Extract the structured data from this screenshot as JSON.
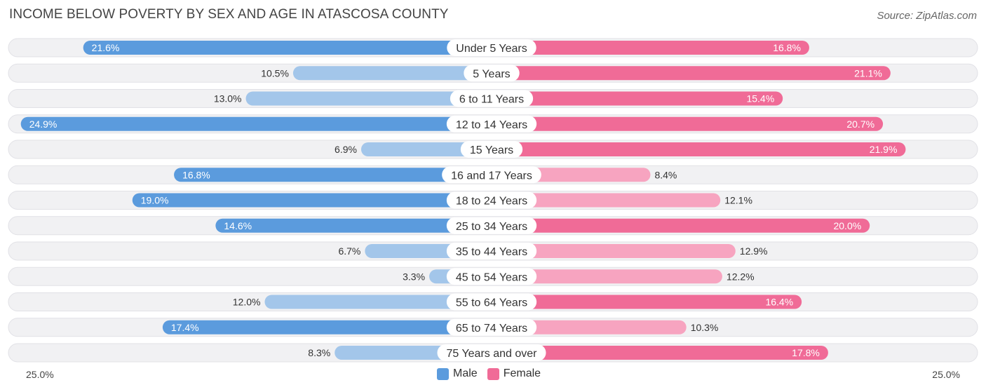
{
  "chart_data": {
    "type": "bar",
    "orientation": "horizontal-diverging",
    "title": "INCOME BELOW POVERTY BY SEX AND AGE IN ATASCOSA COUNTY",
    "source": "Source: ZipAtlas.com",
    "categories": [
      "Under 5 Years",
      "5 Years",
      "6 to 11 Years",
      "12 to 14 Years",
      "15 Years",
      "16 and 17 Years",
      "18 to 24 Years",
      "25 to 34 Years",
      "35 to 44 Years",
      "45 to 54 Years",
      "55 to 64 Years",
      "65 to 74 Years",
      "75 Years and over"
    ],
    "series": [
      {
        "name": "Male",
        "values": [
          21.6,
          10.5,
          13.0,
          24.9,
          6.9,
          16.8,
          19.0,
          14.6,
          6.7,
          3.3,
          12.0,
          17.4,
          8.3
        ],
        "labels": [
          "21.6%",
          "10.5%",
          "13.0%",
          "24.9%",
          "6.9%",
          "16.8%",
          "19.0%",
          "14.6%",
          "6.7%",
          "3.3%",
          "12.0%",
          "17.4%",
          "8.3%"
        ]
      },
      {
        "name": "Female",
        "values": [
          16.8,
          21.1,
          15.4,
          20.7,
          21.9,
          8.4,
          12.1,
          20.0,
          12.9,
          12.2,
          16.4,
          10.3,
          17.8
        ],
        "labels": [
          "16.8%",
          "21.1%",
          "15.4%",
          "20.7%",
          "21.9%",
          "8.4%",
          "12.1%",
          "20.0%",
          "12.9%",
          "12.2%",
          "16.4%",
          "10.3%",
          "17.8%"
        ]
      }
    ],
    "xlim": [
      -25,
      25
    ],
    "axis_labels": {
      "left": "25.0%",
      "right": "25.0%"
    },
    "legend_position": "bottom-center"
  },
  "colors": {
    "male_strong": "#5b9bdd",
    "male_light": "#a3c6ea",
    "female_strong": "#f06b97",
    "female_light": "#f7a4c0",
    "track": "#f1f1f3",
    "track_border": "#e1e1e6"
  }
}
